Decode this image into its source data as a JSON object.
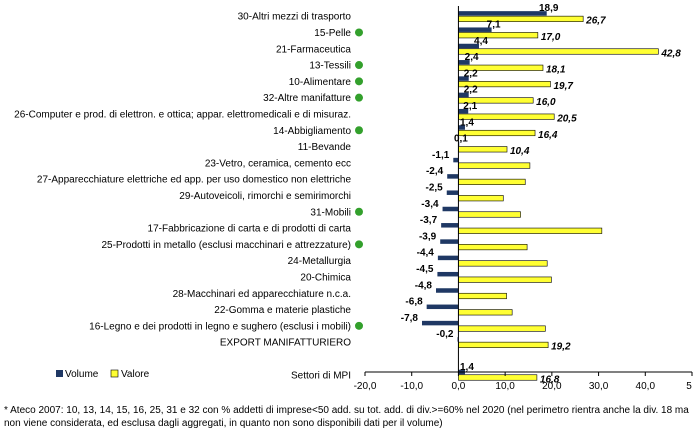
{
  "chart_data": {
    "type": "bar",
    "orientation": "horizontal",
    "categories": [
      "30-Altri mezzi di trasporto",
      "15-Pelle",
      "21-Farmaceutica",
      "13-Tessili",
      "10-Alimentare",
      "32-Altre manifatture",
      "26-Computer e prod. di elettron. e ottica; appar. elettromedicali e di misuraz.",
      "14-Abbigliamento",
      "11-Bevande",
      "23-Vetro, ceramica, cemento ecc",
      "27-Apparecchiature elettriche ed app. per uso domestico non elettriche",
      "29-Autoveicoli, rimorchi e semirimorchi",
      "31-Mobili",
      "17-Fabbricazione di carta e di prodotti di carta",
      "25-Prodotti in metallo (esclusi macchinari e attrezzature)",
      "24-Metallurgia",
      "20-Chimica",
      "28-Macchinari ed apparecchiature n.c.a.",
      "22-Gomma e materie plastiche",
      "16-Legno e dei prodotti in legno e sughero (esclusi i mobili)",
      "EXPORT MANIFATTURIERO",
      "",
      "Settori di MPI"
    ],
    "markers": [
      false,
      true,
      false,
      true,
      true,
      true,
      false,
      true,
      false,
      false,
      false,
      false,
      true,
      false,
      true,
      false,
      false,
      false,
      false,
      true,
      false,
      false,
      false
    ],
    "marker_color": "#33a02c",
    "series": [
      {
        "name": "Volume",
        "color": "#1f3864",
        "values": [
          18.9,
          7.1,
          4.4,
          2.4,
          2.2,
          2.2,
          2.1,
          1.4,
          0.1,
          -1.1,
          -2.4,
          -2.5,
          -3.4,
          -3.7,
          -3.9,
          -4.4,
          -4.5,
          -4.8,
          -6.8,
          -7.8,
          -0.2,
          null,
          1.4
        ],
        "labels": [
          "18,9",
          "7,1",
          "4,4",
          "2,4",
          "2,2",
          "2,2",
          "2,1",
          "1,4",
          "0,1",
          "-1,1",
          "-2,4",
          "-2,5",
          "-3,4",
          "-3,7",
          "-3,9",
          "-4,4",
          "-4,5",
          "-4,8",
          "-6,8",
          "-7,8",
          "-0,2",
          "",
          "1,4"
        ]
      },
      {
        "name": "Valore",
        "color": "#ffff33",
        "values": [
          26.7,
          17.0,
          42.8,
          18.1,
          19.7,
          16.0,
          20.5,
          16.4,
          10.4,
          15.3,
          14.3,
          9.6,
          13.3,
          30.7,
          14.7,
          19.0,
          19.9,
          10.3,
          11.5,
          18.6,
          19.2,
          null,
          16.8
        ],
        "labels": [
          "26,7",
          "17,0",
          "42,8",
          "18,1",
          "19,7",
          "16,0",
          "20,5",
          "16,4",
          "10,4",
          "",
          "",
          "",
          "",
          "",
          "",
          "",
          "",
          "",
          "",
          "",
          "19,2",
          "",
          "16,8"
        ]
      }
    ],
    "xlim": [
      -20,
      50
    ],
    "ticks": [
      "-20,0",
      "-10,0",
      "0,0",
      "10,0",
      "20,0",
      "30,0",
      "40,0",
      "5"
    ],
    "legend_position": "bottom-left",
    "grid": false
  },
  "footnote": "* Ateco 2007: 10, 13, 14, 15, 16, 25, 31 e 32 con % addetti di imprese<50 add. su tot. add. di div.>=60% nel 2020 (nel perimetro rientra anche la div. 18 ma non viene considerata, ed esclusa dagli aggregati, in quanto non sono disponibili dati per il volume)"
}
